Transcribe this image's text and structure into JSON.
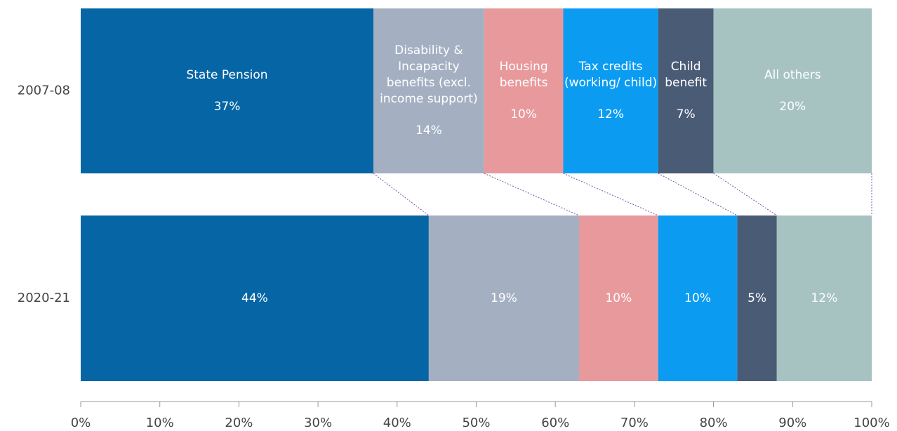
{
  "chart_data": {
    "type": "stacked-bar-horizontal",
    "categories": [
      "2007-08",
      "2020-21"
    ],
    "series": [
      {
        "name": "State Pension",
        "color": "#0565a5",
        "values": [
          37,
          44
        ],
        "value_labels": [
          "37%",
          "44%"
        ]
      },
      {
        "name": "Disability & Incapacity benefits (excl. income support)",
        "color": "#a4b0c2",
        "values": [
          14,
          19
        ],
        "value_labels": [
          "14%",
          "19%"
        ]
      },
      {
        "name": "Housing benefits",
        "color": "#e8999c",
        "values": [
          10,
          10
        ],
        "value_labels": [
          "10%",
          "10%"
        ]
      },
      {
        "name": "Tax credits (working/ child)",
        "color": "#0b9cf2",
        "values": [
          12,
          10
        ],
        "value_labels": [
          "12%",
          "10%"
        ]
      },
      {
        "name": "Child benefit",
        "color": "#4a5b76",
        "values": [
          7,
          5
        ],
        "value_labels": [
          "7%",
          "5%"
        ]
      },
      {
        "name": "All others",
        "color": "#a6c3c2",
        "values": [
          20,
          12
        ],
        "value_labels": [
          "20%",
          "12%"
        ]
      }
    ],
    "xlim": [
      0,
      100
    ],
    "xticks": [
      {
        "value": 0,
        "label": "0%"
      },
      {
        "value": 10,
        "label": "10%"
      },
      {
        "value": 20,
        "label": "20%"
      },
      {
        "value": 30,
        "label": "30%"
      },
      {
        "value": 40,
        "label": "40%"
      },
      {
        "value": 50,
        "label": "50%"
      },
      {
        "value": 60,
        "label": "60%"
      },
      {
        "value": 70,
        "label": "70%"
      },
      {
        "value": 80,
        "label": "80%"
      },
      {
        "value": 90,
        "label": "90%"
      },
      {
        "value": 100,
        "label": "100%"
      }
    ]
  }
}
